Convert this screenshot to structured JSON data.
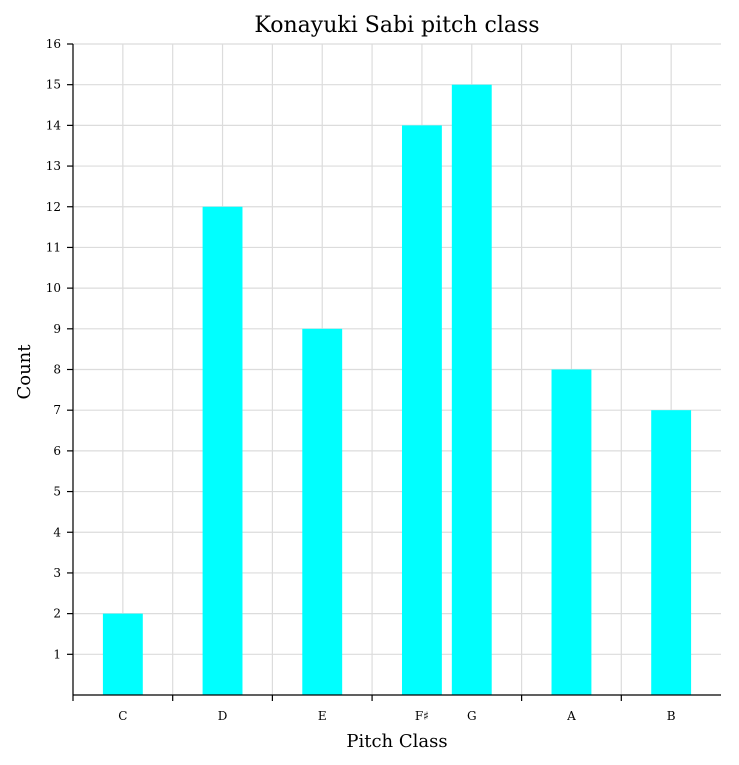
{
  "colors": {
    "bar": "#00ffff",
    "grid": "#dcdcdc",
    "axis": "#000000"
  },
  "chart_data": {
    "type": "bar",
    "title": "Konayuki Sabi pitch class",
    "xlabel": "Pitch Class",
    "ylabel": "Count",
    "categories": [
      "C",
      "D",
      "E",
      "F♯",
      "G",
      "A",
      "B"
    ],
    "positions": [
      0,
      2,
      4,
      6,
      7,
      9,
      11
    ],
    "values": [
      2,
      12,
      9,
      14,
      15,
      8,
      7
    ],
    "xlim": [
      -1,
      12
    ],
    "ylim": [
      0,
      16
    ],
    "yticks": [
      1,
      2,
      3,
      4,
      5,
      6,
      7,
      8,
      9,
      10,
      11,
      12,
      13,
      14,
      15,
      16
    ],
    "xgrid": [
      -1,
      1,
      3,
      5,
      8,
      10
    ],
    "grid": true
  }
}
